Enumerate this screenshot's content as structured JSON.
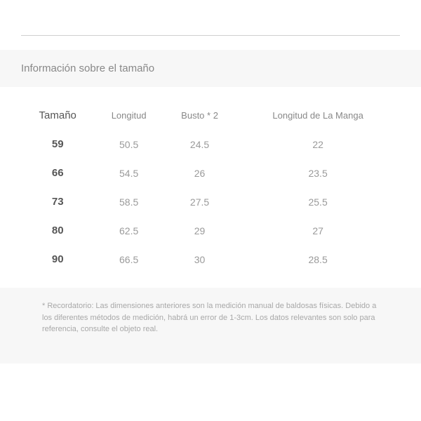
{
  "title": "Información sobre el tamaño",
  "table": {
    "type": "table",
    "columns": [
      "Tamaño",
      "Longitud",
      "Busto * 2",
      "Longitud de La Manga"
    ],
    "rows": [
      [
        "59",
        "50.5",
        "24.5",
        "22"
      ],
      [
        "66",
        "54.5",
        "26",
        "23.5"
      ],
      [
        "73",
        "58.5",
        "27.5",
        "25.5"
      ],
      [
        "80",
        "62.5",
        "29",
        "27"
      ],
      [
        "90",
        "66.5",
        "30",
        "28.5"
      ]
    ],
    "header_fontsize": 13,
    "header_color": "#888888",
    "first_col_header_color": "#555555",
    "first_col_header_fontsize": 15,
    "cell_fontsize": 14,
    "cell_color": "#9a9a9a",
    "first_col_cell_color": "#555555",
    "first_col_cell_fontsize": 15,
    "first_col_cell_bold": true,
    "row_padding": 12
  },
  "footer": "* Recordatorio: Las dimensiones anteriores son la medición manual de baldosas físicas. Debido a los diferentes métodos de medición, habrá un error de 1-3cm. Los datos relevantes son solo para referencia, consulte el objeto real.",
  "colors": {
    "background": "#ffffff",
    "section_bg": "#f7f7f7",
    "divider": "#d0d0d0",
    "title_color": "#888888",
    "footer_color": "#a8a8a8"
  },
  "layout": {
    "title_fontsize": 15,
    "footer_fontsize": 11
  }
}
